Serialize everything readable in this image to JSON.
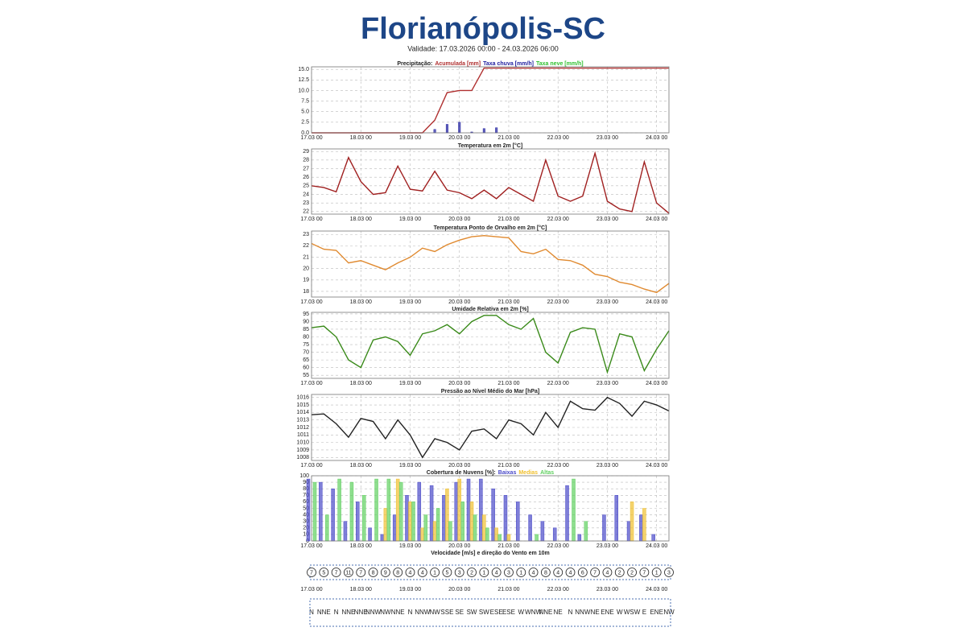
{
  "page_title": "Florianópolis-SC",
  "validity": "Validade: 17.03.2026 00:00 - 24.03.2026 06:00",
  "chart_data": [
    {
      "type": "combo",
      "title": "Precipitação:",
      "x": [
        0,
        6,
        12,
        18,
        24,
        30,
        36,
        42,
        48,
        54,
        60,
        66,
        72,
        78,
        84,
        90,
        96,
        102,
        108,
        114,
        120,
        126,
        132,
        138,
        144,
        150,
        156,
        162,
        168,
        174
      ],
      "xlim": [
        0,
        174
      ],
      "xticks": [
        {
          "value": 0,
          "label": "17.03 00"
        },
        {
          "value": 24,
          "label": "18.03 00"
        },
        {
          "value": 48,
          "label": "19.03 00"
        },
        {
          "value": 72,
          "label": "20.03 00"
        },
        {
          "value": 96,
          "label": "21.03 00"
        },
        {
          "value": 120,
          "label": "22.03 00"
        },
        {
          "value": 144,
          "label": "23.03 00"
        },
        {
          "value": 168,
          "label": "24.03 00"
        }
      ],
      "ylim": [
        0,
        15.6
      ],
      "yticks": [
        {
          "value": 0,
          "label": "0.0"
        },
        2.5,
        {
          "value": 5,
          "label": "5.0"
        },
        7.5,
        {
          "value": 10,
          "label": "10.0"
        },
        12.5,
        {
          "value": 15,
          "label": "15.0"
        }
      ],
      "grid": true,
      "series": [
        {
          "name": "Acumulada [mm]",
          "color": "#b03030",
          "kind": "line",
          "values": [
            0,
            0,
            0,
            0,
            0,
            0,
            0,
            0,
            0,
            0,
            3,
            9.5,
            10,
            10,
            15.3,
            15.3,
            15.3,
            15.3,
            15.3,
            15.3,
            15.3,
            15.3,
            15.3,
            15.3,
            15.3,
            15.3,
            15.3,
            15.3,
            15.3,
            15.3
          ]
        },
        {
          "name": "Taxa chuva [mm/h]",
          "color": "#2020a0",
          "kind": "bar",
          "values": [
            0,
            0,
            0,
            0,
            0,
            0,
            0,
            0,
            0,
            0,
            0.8,
            2,
            2.5,
            0.2,
            1,
            1.2,
            0,
            0,
            0,
            0,
            0,
            0,
            0,
            0,
            0,
            0,
            0,
            0,
            0,
            0
          ]
        },
        {
          "name": "Taxa neve [mm/h]",
          "color": "#30c030",
          "kind": "bar",
          "values": [
            0,
            0,
            0,
            0,
            0,
            0,
            0,
            0,
            0,
            0,
            0,
            0,
            0,
            0,
            0,
            0,
            0,
            0,
            0,
            0,
            0,
            0,
            0,
            0,
            0,
            0,
            0,
            0,
            0,
            0
          ]
        }
      ]
    },
    {
      "type": "line",
      "title": "Temperatura em 2m [°C]",
      "x": [
        0,
        6,
        12,
        18,
        24,
        30,
        36,
        42,
        48,
        54,
        60,
        66,
        72,
        78,
        84,
        90,
        96,
        102,
        108,
        114,
        120,
        126,
        132,
        138,
        144,
        150,
        156,
        162,
        168,
        174
      ],
      "xlim": [
        0,
        174
      ],
      "xticks": [
        {
          "value": 0,
          "label": "17.03 00"
        },
        {
          "value": 24,
          "label": "18.03 00"
        },
        {
          "value": 48,
          "label": "19.03 00"
        },
        {
          "value": 72,
          "label": "20.03 00"
        },
        {
          "value": 96,
          "label": "21.03 00"
        },
        {
          "value": 120,
          "label": "22.03 00"
        },
        {
          "value": 144,
          "label": "23.03 00"
        },
        {
          "value": 168,
          "label": "24.03 00"
        }
      ],
      "ylim": [
        21.7,
        29.3
      ],
      "yticks": [
        22,
        23,
        24,
        25,
        26,
        27,
        28,
        29
      ],
      "grid": true,
      "series": [
        {
          "color": "#a02020",
          "values": [
            25,
            24.8,
            24.3,
            28.3,
            25.5,
            24,
            24.2,
            27.3,
            24.6,
            24.4,
            26.7,
            24.5,
            24.2,
            23.5,
            24.5,
            23.5,
            24.8,
            24,
            23.2,
            28,
            23.8,
            23.2,
            23.8,
            28.8,
            23.2,
            22.3,
            22,
            27.8,
            23,
            21.8
          ]
        }
      ]
    },
    {
      "type": "line",
      "title": "Temperatura Ponto de Orvalho em 2m [°C]",
      "x": [
        0,
        6,
        12,
        18,
        24,
        30,
        36,
        42,
        48,
        54,
        60,
        66,
        72,
        78,
        84,
        90,
        96,
        102,
        108,
        114,
        120,
        126,
        132,
        138,
        144,
        150,
        156,
        162,
        168,
        174
      ],
      "xlim": [
        0,
        174
      ],
      "xticks": [
        {
          "value": 0,
          "label": "17.03 00"
        },
        {
          "value": 24,
          "label": "18.03 00"
        },
        {
          "value": 48,
          "label": "19.03 00"
        },
        {
          "value": 72,
          "label": "20.03 00"
        },
        {
          "value": 96,
          "label": "21.03 00"
        },
        {
          "value": 120,
          "label": "22.03 00"
        },
        {
          "value": 144,
          "label": "23.03 00"
        },
        {
          "value": 168,
          "label": "24.03 00"
        }
      ],
      "ylim": [
        17.5,
        23.3
      ],
      "yticks": [
        18,
        19,
        20,
        21,
        22,
        23
      ],
      "grid": true,
      "series": [
        {
          "color": "#e08a30",
          "values": [
            22.2,
            21.7,
            21.6,
            20.5,
            20.7,
            20.3,
            19.9,
            20.5,
            21,
            21.8,
            21.5,
            22.1,
            22.5,
            22.8,
            22.9,
            22.8,
            22.7,
            21.5,
            21.3,
            21.7,
            20.8,
            20.7,
            20.3,
            19.5,
            19.3,
            18.8,
            18.6,
            18.2,
            17.9,
            18.7
          ]
        }
      ]
    },
    {
      "type": "line",
      "title": "Umidade Relativa em 2m [%]",
      "x": [
        0,
        6,
        12,
        18,
        24,
        30,
        36,
        42,
        48,
        54,
        60,
        66,
        72,
        78,
        84,
        90,
        96,
        102,
        108,
        114,
        120,
        126,
        132,
        138,
        144,
        150,
        156,
        162,
        168,
        174
      ],
      "xlim": [
        0,
        174
      ],
      "xticks": [
        {
          "value": 0,
          "label": "17.03 00"
        },
        {
          "value": 24,
          "label": "18.03 00"
        },
        {
          "value": 48,
          "label": "19.03 00"
        },
        {
          "value": 72,
          "label": "20.03 00"
        },
        {
          "value": 96,
          "label": "21.03 00"
        },
        {
          "value": 120,
          "label": "22.03 00"
        },
        {
          "value": 144,
          "label": "23.03 00"
        },
        {
          "value": 168,
          "label": "24.03 00"
        }
      ],
      "ylim": [
        53,
        96
      ],
      "yticks": [
        55,
        60,
        65,
        70,
        75,
        80,
        85,
        90,
        95
      ],
      "grid": true,
      "series": [
        {
          "color": "#3a8a1a",
          "values": [
            86,
            87,
            80,
            65,
            60,
            78,
            80,
            77,
            68,
            82,
            84,
            88,
            82,
            90,
            94,
            94,
            88,
            85,
            92,
            70,
            63,
            83,
            86,
            85,
            57,
            82,
            80,
            58,
            72,
            84
          ]
        }
      ]
    },
    {
      "type": "line",
      "title": "Pressão ao Nível Médio do Mar [hPa]",
      "x": [
        0,
        6,
        12,
        18,
        24,
        30,
        36,
        42,
        48,
        54,
        60,
        66,
        72,
        78,
        84,
        90,
        96,
        102,
        108,
        114,
        120,
        126,
        132,
        138,
        144,
        150,
        156,
        162,
        168,
        174
      ],
      "xlim": [
        0,
        174
      ],
      "xticks": [
        {
          "value": 0,
          "label": "17.03 00"
        },
        {
          "value": 24,
          "label": "18.03 00"
        },
        {
          "value": 48,
          "label": "19.03 00"
        },
        {
          "value": 72,
          "label": "20.03 00"
        },
        {
          "value": 96,
          "label": "21.03 00"
        },
        {
          "value": 120,
          "label": "22.03 00"
        },
        {
          "value": 144,
          "label": "23.03 00"
        },
        {
          "value": 168,
          "label": "24.03 00"
        }
      ],
      "ylim": [
        1007.6,
        1016.4
      ],
      "yticks": [
        1008,
        1009,
        1010,
        1011,
        1012,
        1013,
        1014,
        1015,
        1016
      ],
      "grid": true,
      "series": [
        {
          "color": "#222222",
          "values": [
            1013.7,
            1013.8,
            1012.5,
            1010.7,
            1013.2,
            1012.8,
            1010.5,
            1013,
            1011,
            1008,
            1010.5,
            1010,
            1009,
            1011.5,
            1011.8,
            1010.5,
            1013,
            1012.5,
            1011,
            1014,
            1012,
            1015.5,
            1014.5,
            1014.3,
            1016,
            1015.2,
            1013.5,
            1015.5,
            1015,
            1014.2
          ]
        }
      ]
    },
    {
      "type": "bar",
      "title": "Cobertura de Nuvens [%]:",
      "x": [
        0,
        6,
        12,
        18,
        24,
        30,
        36,
        42,
        48,
        54,
        60,
        66,
        72,
        78,
        84,
        90,
        96,
        102,
        108,
        114,
        120,
        126,
        132,
        138,
        144,
        150,
        156,
        162,
        168,
        174
      ],
      "xlim": [
        0,
        174
      ],
      "xticks": [
        {
          "value": 0,
          "label": "17.03 00"
        },
        {
          "value": 24,
          "label": "18.03 00"
        },
        {
          "value": 48,
          "label": "19.03 00"
        },
        {
          "value": 72,
          "label": "20.03 00"
        },
        {
          "value": 96,
          "label": "21.03 00"
        },
        {
          "value": 120,
          "label": "22.03 00"
        },
        {
          "value": 144,
          "label": "23.03 00"
        },
        {
          "value": 168,
          "label": "24.03 00"
        }
      ],
      "ylim": [
        0,
        100
      ],
      "yticks": [
        0,
        10,
        20,
        30,
        40,
        50,
        60,
        70,
        80,
        90,
        100
      ],
      "grid": true,
      "series": [
        {
          "name": "Baixas",
          "color": "#4848c8",
          "values": [
            95,
            90,
            80,
            30,
            60,
            20,
            10,
            40,
            70,
            90,
            85,
            70,
            90,
            95,
            95,
            80,
            70,
            60,
            40,
            30,
            20,
            85,
            10,
            0,
            40,
            70,
            30,
            40,
            10,
            0
          ]
        },
        {
          "name": "Medias",
          "color": "#f0c030",
          "values": [
            0,
            0,
            0,
            0,
            0,
            0,
            50,
            95,
            60,
            20,
            30,
            80,
            95,
            60,
            40,
            20,
            10,
            0,
            0,
            0,
            0,
            0,
            0,
            0,
            0,
            0,
            60,
            50,
            0,
            0
          ]
        },
        {
          "name": "Altas",
          "color": "#60d060",
          "values": [
            90,
            40,
            95,
            90,
            70,
            95,
            95,
            90,
            60,
            40,
            50,
            30,
            60,
            40,
            20,
            10,
            0,
            0,
            10,
            0,
            0,
            95,
            30,
            0,
            0,
            0,
            0,
            0,
            0,
            0
          ]
        }
      ]
    },
    {
      "type": "wind",
      "title": "Velocidade [m/s] e direção do Vento em 10m",
      "x": [
        0,
        6,
        12,
        18,
        24,
        30,
        36,
        42,
        48,
        54,
        60,
        66,
        72,
        78,
        84,
        90,
        96,
        102,
        108,
        114,
        120,
        126,
        132,
        138,
        144,
        150,
        156,
        162,
        168,
        174
      ],
      "xlim": [
        0,
        174
      ],
      "xticks": [
        {
          "value": 0,
          "label": "17.03 00"
        },
        {
          "value": 24,
          "label": "18.03 00"
        },
        {
          "value": 48,
          "label": "19.03 00"
        },
        {
          "value": 72,
          "label": "20.03 00"
        },
        {
          "value": 96,
          "label": "21.03 00"
        },
        {
          "value": 120,
          "label": "22.03 00"
        },
        {
          "value": 144,
          "label": "23.03 00"
        },
        {
          "value": 168,
          "label": "24.03 00"
        }
      ],
      "values": [
        7,
        5,
        7,
        11,
        7,
        8,
        9,
        8,
        4,
        4,
        1,
        5,
        3,
        2,
        1,
        4,
        3,
        1,
        4,
        8,
        4,
        4,
        6,
        7,
        4,
        2,
        2,
        7,
        1,
        3
      ],
      "directions": [
        "N",
        "NNE",
        "N",
        "NNE",
        "NNE",
        "NNW",
        "NW",
        "NNE",
        "N",
        "NNW",
        "NW",
        "SSE",
        "SE",
        "SW",
        "SW",
        "ESE",
        "ESE",
        "W",
        "WNW",
        "NNE",
        "NE",
        "N",
        "NNW",
        "NE",
        "ENE",
        "W",
        "WSW",
        "E",
        "ENE",
        "NW"
      ]
    }
  ]
}
